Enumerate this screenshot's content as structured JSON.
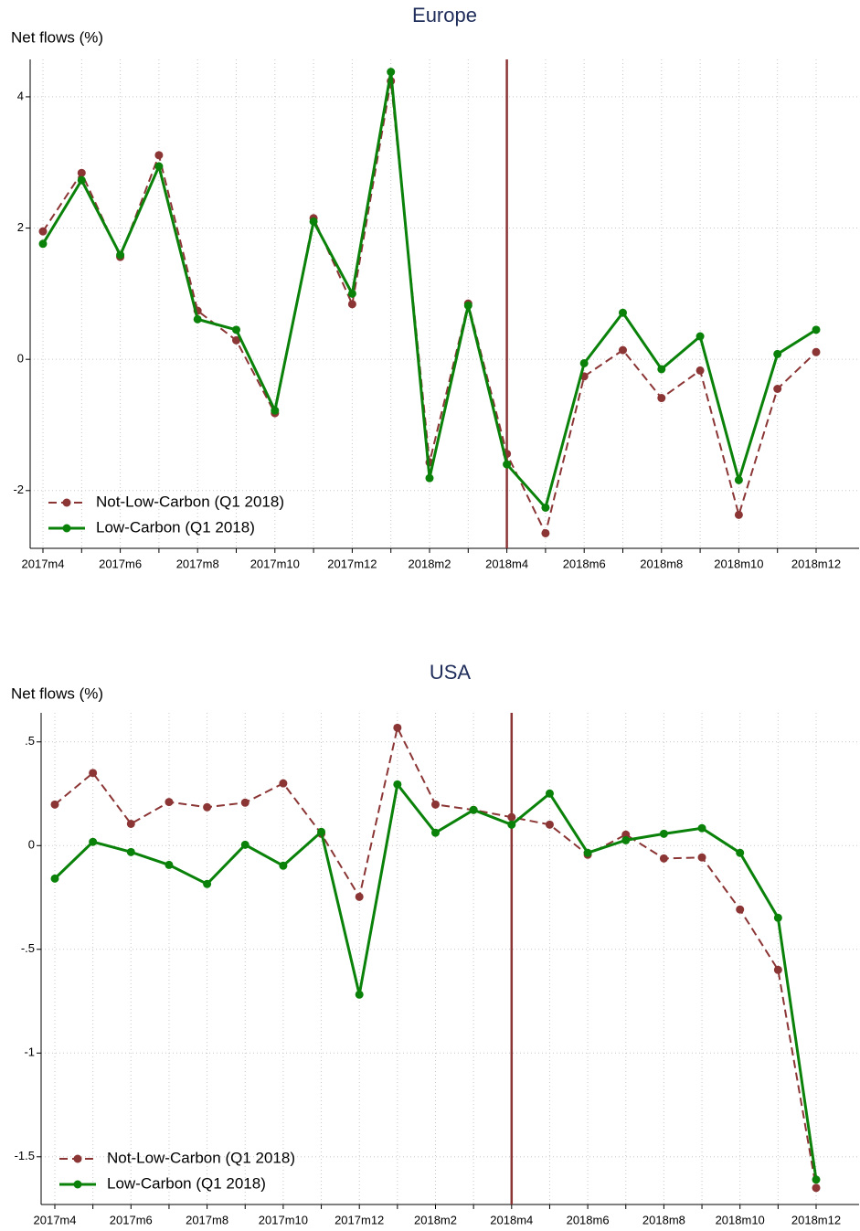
{
  "chart_data": [
    {
      "type": "line",
      "title": "Europe",
      "y_label": "Net flows (%)",
      "categories": [
        "2017m4",
        null,
        "2017m6",
        null,
        "2017m8",
        null,
        "2017m10",
        null,
        "2017m12",
        null,
        "2018m2",
        null,
        "2018m4",
        null,
        "2018m6",
        null,
        "2018m8",
        null,
        "2018m10",
        null,
        "2018m12"
      ],
      "series": [
        {
          "name": "Not-Low-Carbon (Q1 2018)",
          "color": "#8b3535",
          "dashed": true,
          "values": [
            1.95,
            2.84,
            1.56,
            3.11,
            0.74,
            0.29,
            -0.82,
            2.15,
            0.84,
            4.24,
            -1.57,
            0.85,
            -1.44,
            -2.65,
            -0.26,
            0.14,
            -0.59,
            -0.17,
            -2.37,
            -0.45,
            0.11
          ]
        },
        {
          "name": "Low-Carbon (Q1 2018)",
          "color": "#0a820a",
          "dashed": false,
          "values": [
            1.76,
            2.73,
            1.59,
            2.94,
            0.61,
            0.45,
            -0.78,
            2.1,
            1.0,
            4.38,
            -1.81,
            0.82,
            -1.6,
            -2.26,
            -0.06,
            0.71,
            -0.15,
            0.35,
            -1.84,
            0.08,
            0.45
          ]
        }
      ],
      "ylim": [
        -2.88,
        4.57
      ],
      "yticks": [
        -2,
        0,
        2,
        4
      ],
      "grid": true,
      "legend": "lower left",
      "vline": 12,
      "vline_color": "#8b3535"
    },
    {
      "type": "line",
      "title": "USA",
      "y_label": "Net flows (%)",
      "categories": [
        "2017m4",
        null,
        "2017m6",
        null,
        "2017m8",
        null,
        "2017m10",
        null,
        "2017m12",
        null,
        "2018m2",
        null,
        "2018m4",
        null,
        "2018m6",
        null,
        "2018m8",
        null,
        "2018m10",
        null,
        "2018m12"
      ],
      "series": [
        {
          "name": "Not-Low-Carbon (Q1 2018)",
          "color": "#8b3535",
          "dashed": true,
          "values": [
            0.198,
            0.35,
            0.105,
            0.21,
            0.185,
            0.207,
            0.3,
            0.057,
            -0.247,
            0.568,
            0.198,
            0.172,
            0.137,
            0.101,
            -0.044,
            0.053,
            -0.062,
            -0.057,
            -0.308,
            -0.599,
            -1.65
          ]
        },
        {
          "name": "Low-Carbon (Q1 2018)",
          "color": "#0a820a",
          "dashed": false,
          "values": [
            -0.159,
            0.018,
            -0.031,
            -0.093,
            -0.185,
            0.004,
            -0.097,
            0.066,
            -0.718,
            0.295,
            0.062,
            0.172,
            0.101,
            0.251,
            -0.035,
            0.026,
            0.057,
            0.084,
            -0.035,
            -0.348,
            -1.61
          ]
        }
      ],
      "ylim": [
        -1.73,
        0.64
      ],
      "yticks": [
        {
          "value": 0.5,
          "label": ".5"
        },
        0,
        {
          "value": -0.5,
          "label": "-.5"
        },
        -1,
        -1.5
      ],
      "grid": true,
      "legend": "lower left",
      "vline": 12,
      "vline_color": "#8b3535"
    }
  ]
}
